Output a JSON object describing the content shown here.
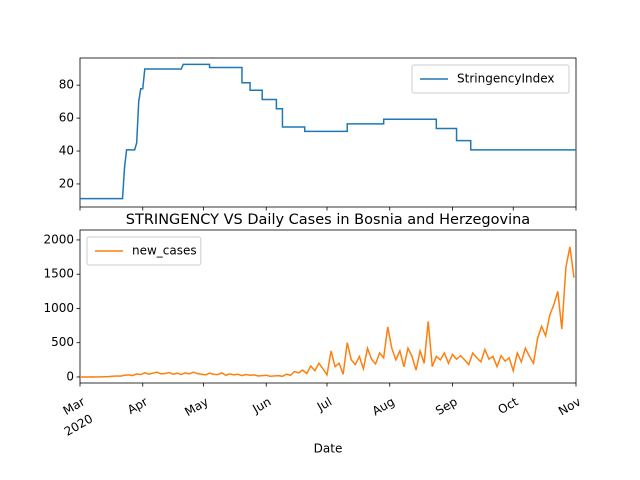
{
  "chart_data": [
    {
      "type": "line",
      "legend": "upper right",
      "xlim": [
        0,
        245
      ],
      "xticks": [
        0,
        31,
        61,
        92,
        122,
        153,
        184,
        214,
        245
      ],
      "ylim": [
        6,
        96.5
      ],
      "yticks": [
        20,
        40,
        60,
        80
      ],
      "series": [
        {
          "name": "StringencyIndex",
          "color": "#1f77b4",
          "x": [
            0,
            21,
            22,
            23,
            27,
            28,
            29,
            30,
            31,
            32,
            50,
            51,
            64,
            64,
            80,
            80,
            84,
            84,
            90,
            90,
            97,
            97,
            100,
            100,
            111,
            111,
            132,
            132,
            150,
            150,
            176,
            176,
            186,
            186,
            193,
            193,
            245
          ],
          "values": [
            11.1,
            11.1,
            30,
            40.7,
            40.7,
            45,
            70,
            77.8,
            77.8,
            89.8,
            89.8,
            92.6,
            92.6,
            90.7,
            90.7,
            81.5,
            81.5,
            76.9,
            76.9,
            71.3,
            71.3,
            65.7,
            65.7,
            54.6,
            54.6,
            51.9,
            51.9,
            56.5,
            56.5,
            59.3,
            59.3,
            53.7,
            53.7,
            46.3,
            46.3,
            40.7,
            40.7
          ]
        }
      ]
    },
    {
      "type": "line",
      "legend": "upper left",
      "title": "STRINGENCY VS Daily Cases in Bosnia and Herzegovina",
      "x_label": "Date",
      "year_label": "2020",
      "xlim": [
        0,
        245
      ],
      "xticks": [
        {
          "value": 0,
          "label": "Mar"
        },
        {
          "value": 31,
          "label": "Apr"
        },
        {
          "value": 61,
          "label": "May"
        },
        {
          "value": 92,
          "label": "Jun"
        },
        {
          "value": 122,
          "label": "Jul"
        },
        {
          "value": 153,
          "label": "Aug"
        },
        {
          "value": 184,
          "label": "Sep"
        },
        {
          "value": 214,
          "label": "Oct"
        },
        {
          "value": 245,
          "label": "Nov"
        }
      ],
      "ylim": [
        -88,
        2145
      ],
      "yticks": [
        0,
        500,
        1000,
        1500,
        2000
      ],
      "series": [
        {
          "name": "new_cases",
          "color": "#ff7f0e",
          "x": [
            0,
            2,
            4,
            6,
            8,
            10,
            12,
            14,
            16,
            18,
            20,
            22,
            24,
            26,
            28,
            30,
            32,
            34,
            36,
            38,
            40,
            42,
            44,
            46,
            48,
            50,
            52,
            54,
            56,
            58,
            60,
            62,
            64,
            66,
            68,
            70,
            72,
            74,
            76,
            78,
            80,
            82,
            84,
            86,
            88,
            90,
            92,
            94,
            96,
            98,
            100,
            102,
            104,
            106,
            108,
            110,
            112,
            114,
            116,
            118,
            120,
            122,
            124,
            126,
            128,
            130,
            132,
            134,
            136,
            138,
            140,
            142,
            144,
            146,
            148,
            150,
            152,
            154,
            156,
            158,
            160,
            162,
            164,
            166,
            168,
            170,
            172,
            174,
            176,
            178,
            180,
            182,
            184,
            186,
            188,
            190,
            192,
            194,
            196,
            198,
            200,
            202,
            204,
            206,
            208,
            210,
            212,
            214,
            216,
            218,
            220,
            222,
            224,
            226,
            228,
            230,
            232,
            234,
            236,
            238,
            240,
            242,
            244
          ],
          "values": [
            0,
            0,
            0,
            1,
            0,
            2,
            3,
            5,
            10,
            15,
            12,
            25,
            30,
            20,
            45,
            35,
            60,
            40,
            55,
            70,
            45,
            50,
            65,
            40,
            55,
            35,
            60,
            45,
            70,
            50,
            40,
            30,
            55,
            40,
            35,
            60,
            25,
            45,
            30,
            40,
            20,
            35,
            25,
            30,
            15,
            20,
            25,
            10,
            15,
            20,
            10,
            40,
            25,
            80,
            60,
            100,
            50,
            160,
            90,
            200,
            120,
            30,
            380,
            150,
            200,
            40,
            500,
            250,
            180,
            300,
            120,
            420,
            260,
            190,
            350,
            280,
            730,
            420,
            250,
            380,
            150,
            420,
            300,
            100,
            380,
            200,
            810,
            150,
            300,
            250,
            350,
            200,
            330,
            260,
            310,
            250,
            180,
            350,
            280,
            220,
            400,
            260,
            300,
            150,
            310,
            230,
            280,
            90,
            350,
            220,
            420,
            300,
            200,
            560,
            740,
            600,
            900,
            1050,
            1250,
            700,
            1600,
            1900,
            1450
          ]
        }
      ]
    }
  ]
}
